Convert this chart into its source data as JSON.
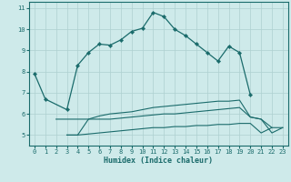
{
  "xlabel": "Humidex (Indice chaleur)",
  "background_color": "#ceeaea",
  "grid_color": "#aed0d0",
  "line_color": "#1a6b6b",
  "xlim": [
    -0.5,
    23.5
  ],
  "ylim": [
    4.5,
    11.3
  ],
  "xticks": [
    0,
    1,
    2,
    3,
    4,
    5,
    6,
    7,
    8,
    9,
    10,
    11,
    12,
    13,
    14,
    15,
    16,
    17,
    18,
    19,
    20,
    21,
    22,
    23
  ],
  "yticks": [
    5,
    6,
    7,
    8,
    9,
    10,
    11
  ],
  "series1_x": [
    0,
    1,
    3,
    4,
    5,
    6,
    7,
    8,
    9,
    10,
    11,
    12,
    13,
    14,
    15,
    16,
    17,
    18,
    19,
    20
  ],
  "series1_y": [
    7.9,
    6.7,
    6.2,
    8.3,
    8.9,
    9.3,
    9.25,
    9.5,
    9.9,
    10.05,
    10.8,
    10.6,
    10.0,
    9.7,
    9.3,
    8.9,
    8.5,
    9.2,
    8.9,
    6.9
  ],
  "series2_x": [
    3,
    4,
    5,
    6,
    7,
    8,
    9,
    10,
    11,
    12,
    13,
    14,
    15,
    16,
    17,
    18,
    19,
    20,
    21,
    22,
    23
  ],
  "series2_y": [
    5.0,
    5.0,
    5.75,
    5.9,
    6.0,
    6.05,
    6.1,
    6.2,
    6.3,
    6.35,
    6.4,
    6.45,
    6.5,
    6.55,
    6.6,
    6.6,
    6.65,
    5.85,
    5.75,
    5.1,
    5.35
  ],
  "series3_x": [
    2,
    3,
    4,
    5,
    6,
    7,
    8,
    9,
    10,
    11,
    12,
    13,
    14,
    15,
    16,
    17,
    18,
    19,
    20,
    21,
    22
  ],
  "series3_y": [
    5.75,
    5.75,
    5.75,
    5.75,
    5.75,
    5.75,
    5.8,
    5.85,
    5.9,
    5.95,
    6.0,
    6.0,
    6.05,
    6.1,
    6.15,
    6.2,
    6.25,
    6.3,
    5.85,
    5.75,
    5.35
  ],
  "series4_x": [
    3,
    4,
    5,
    6,
    7,
    8,
    9,
    10,
    11,
    12,
    13,
    14,
    15,
    16,
    17,
    18,
    19,
    20,
    21,
    22,
    23
  ],
  "series4_y": [
    5.0,
    5.0,
    5.05,
    5.1,
    5.15,
    5.2,
    5.25,
    5.3,
    5.35,
    5.35,
    5.4,
    5.4,
    5.45,
    5.45,
    5.5,
    5.5,
    5.55,
    5.55,
    5.1,
    5.35,
    5.35
  ]
}
